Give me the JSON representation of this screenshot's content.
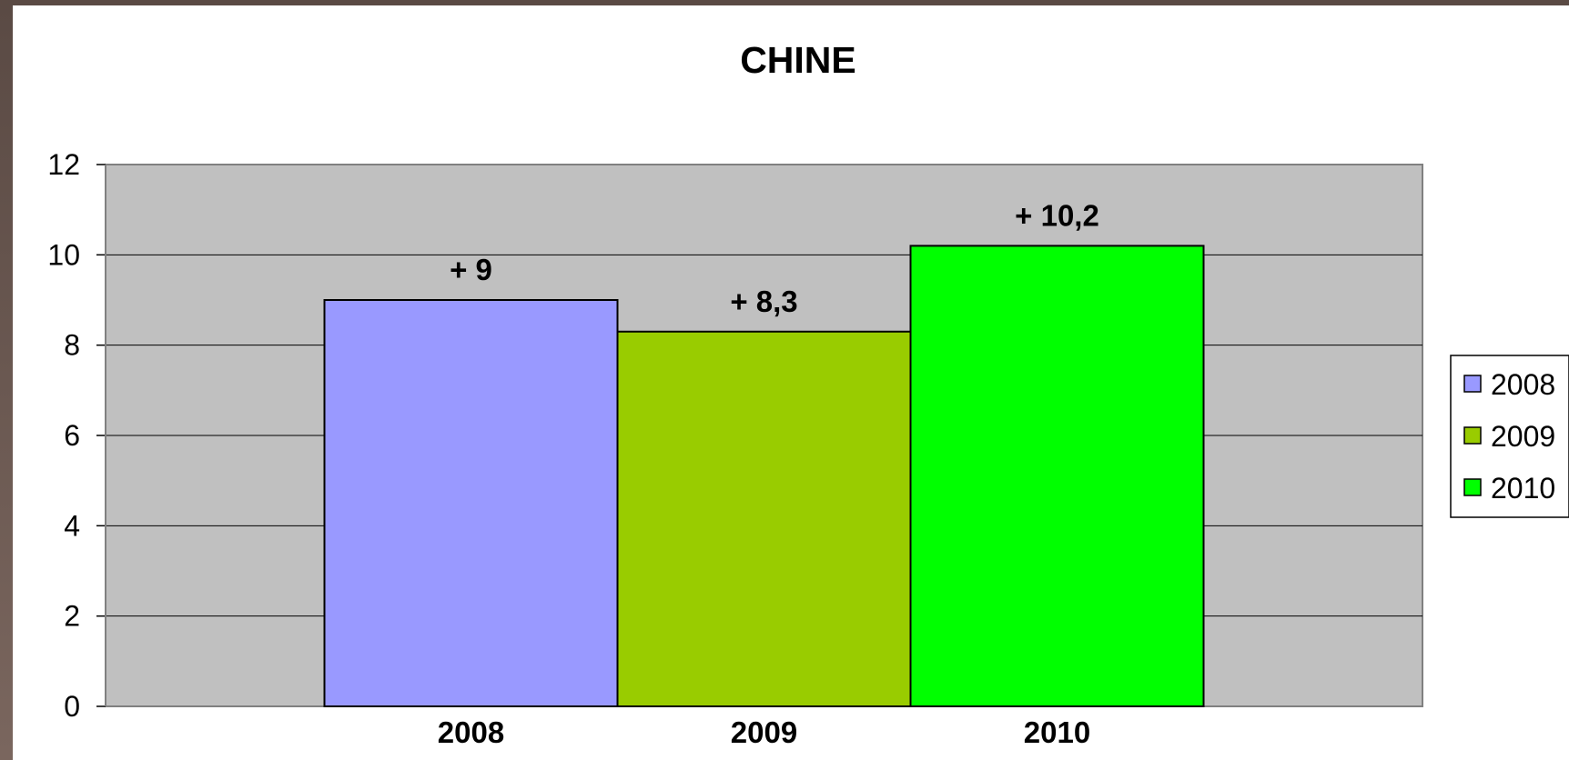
{
  "chart_data": {
    "type": "bar",
    "title": "CHINE",
    "categories": [
      "2008",
      "2009",
      "2010"
    ],
    "values": [
      9,
      8.3,
      10.2
    ],
    "data_labels": [
      "+ 9",
      "+ 8,3",
      "+ 10,2"
    ],
    "colors": [
      "#9999ff",
      "#99cc00",
      "#00ff00"
    ],
    "ylim": [
      0,
      12
    ],
    "yticks": [
      "0",
      "2",
      "4",
      "6",
      "8",
      "10",
      "12"
    ],
    "xlabel": "",
    "ylabel": "",
    "grid": true,
    "plot_background": "#c0c0c0",
    "legend": {
      "position": "right",
      "entries": [
        "2008",
        "2009",
        "2010"
      ]
    }
  }
}
